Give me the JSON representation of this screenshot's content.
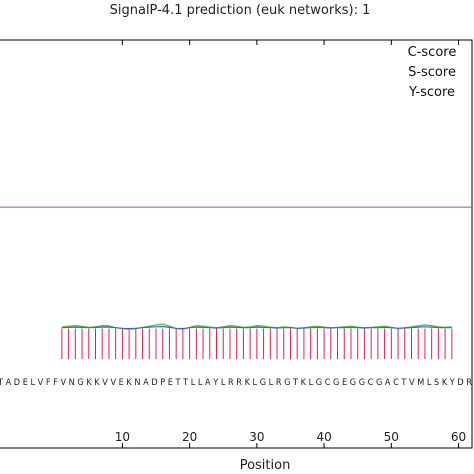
{
  "chart_data": {
    "type": "line",
    "title": "SignalP-4.1 prediction (euk networks): 1",
    "xlabel": "Position",
    "ylabel": "",
    "xlim": [
      -8.5,
      62
    ],
    "ylim": [
      0,
      1.05
    ],
    "x_ticks": [
      10,
      20,
      30,
      40,
      50,
      60
    ],
    "x_tick_labels": [
      "10",
      "20",
      "30",
      "40",
      "50",
      "60"
    ],
    "legend": [
      "C-score",
      "S-score",
      "Y-score"
    ],
    "legend_position": "top-right",
    "cutoff_line": {
      "value": 0.5,
      "color": "#9b4fa8"
    },
    "sequence": "TADELVFFVNGKKVVEKNADPETTLLAYLRRKLGLRGTKLGCGEGGCGACTVMLSKYDR",
    "sequence_display": "T A D E L V F F V N G K K V V E K N A D P E T T L L A Y L R R K L G L R G T K L G C G E G G C G A C T V M L S K Y D R",
    "sequence_start": 1,
    "series": [
      {
        "name": "C-score",
        "color": "#e0204a",
        "style": "stem",
        "values": [
          0.1,
          0.1,
          0.1,
          0.1,
          0.1,
          0.1,
          0.1,
          0.1,
          0.1,
          0.1,
          0.1,
          0.1,
          0.1,
          0.1,
          0.1,
          0.1,
          0.1,
          0.1,
          0.1,
          0.1,
          0.1,
          0.1,
          0.1,
          0.1,
          0.1,
          0.1,
          0.1,
          0.1,
          0.1,
          0.1,
          0.1,
          0.1,
          0.1,
          0.1,
          0.1,
          0.1,
          0.1,
          0.1,
          0.1,
          0.1,
          0.1,
          0.1,
          0.1,
          0.1,
          0.1,
          0.1,
          0.1,
          0.1,
          0.1,
          0.1,
          0.1,
          0.1,
          0.1,
          0.1,
          0.1,
          0.1,
          0.1,
          0.1,
          0.1
        ]
      },
      {
        "name": "S-score",
        "color": "#44c02a",
        "style": "line",
        "values": [
          0.105,
          0.108,
          0.11,
          0.107,
          0.104,
          0.106,
          0.11,
          0.109,
          0.103,
          0.1,
          0.098,
          0.1,
          0.104,
          0.108,
          0.112,
          0.115,
          0.108,
          0.1,
          0.098,
          0.104,
          0.11,
          0.108,
          0.105,
          0.103,
          0.106,
          0.11,
          0.108,
          0.104,
          0.106,
          0.11,
          0.108,
          0.105,
          0.103,
          0.106,
          0.104,
          0.101,
          0.103,
          0.106,
          0.108,
          0.105,
          0.103,
          0.104,
          0.106,
          0.108,
          0.105,
          0.103,
          0.104,
          0.106,
          0.108,
          0.104,
          0.101,
          0.103,
          0.106,
          0.109,
          0.112,
          0.11,
          0.106,
          0.104,
          0.106
        ]
      },
      {
        "name": "Y-score",
        "color": "#3a68c8",
        "style": "line",
        "values": [
          0.103,
          0.104,
          0.105,
          0.104,
          0.103,
          0.104,
          0.105,
          0.105,
          0.103,
          0.101,
          0.1,
          0.101,
          0.103,
          0.105,
          0.106,
          0.107,
          0.104,
          0.101,
          0.1,
          0.103,
          0.105,
          0.104,
          0.103,
          0.102,
          0.103,
          0.105,
          0.104,
          0.103,
          0.103,
          0.105,
          0.104,
          0.103,
          0.102,
          0.103,
          0.103,
          0.101,
          0.102,
          0.103,
          0.104,
          0.103,
          0.102,
          0.103,
          0.103,
          0.104,
          0.103,
          0.102,
          0.103,
          0.103,
          0.104,
          0.103,
          0.101,
          0.102,
          0.103,
          0.105,
          0.106,
          0.105,
          0.103,
          0.103,
          0.103
        ]
      }
    ]
  }
}
